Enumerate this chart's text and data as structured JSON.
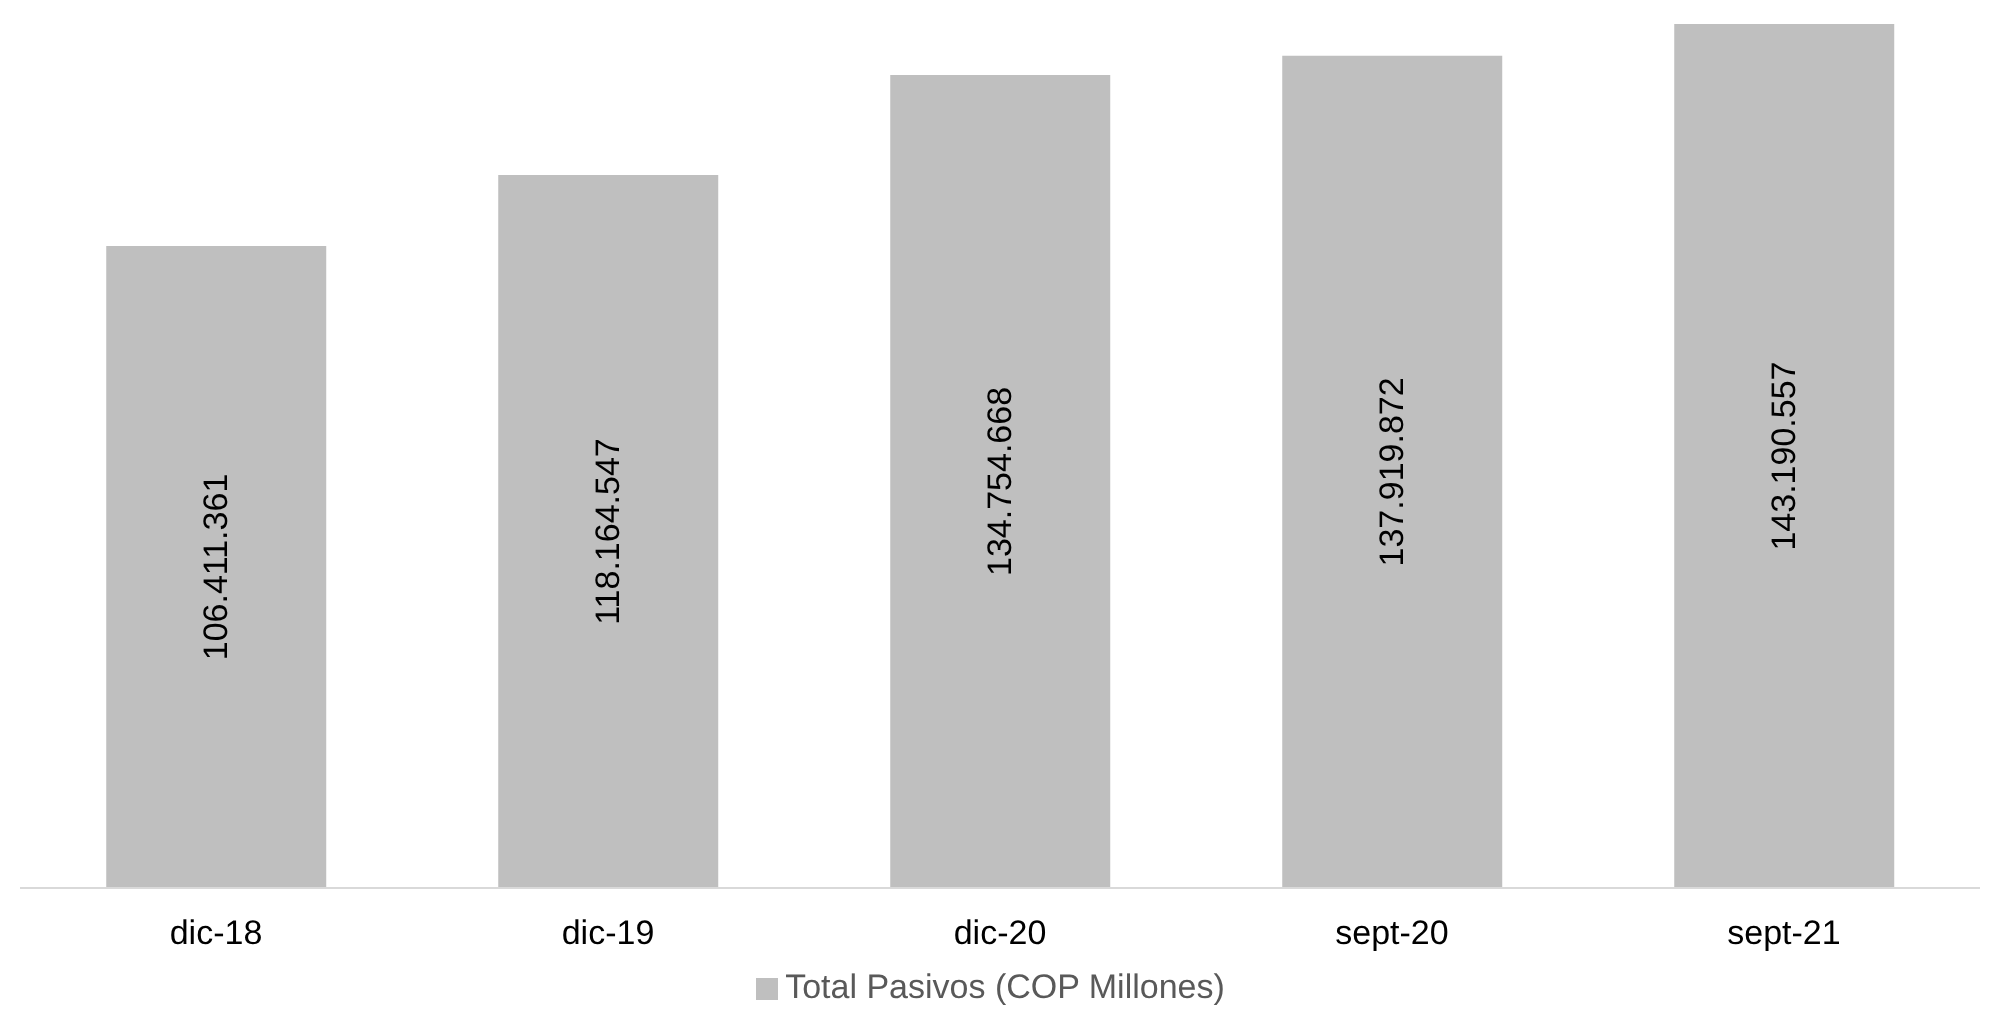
{
  "chart_data": {
    "type": "bar",
    "categories": [
      "dic-18",
      "dic-19",
      "dic-20",
      "sept-20",
      "sept-21"
    ],
    "series": [
      {
        "name": "Total Pasivos  (COP Millones)",
        "color": "#bfbfbf",
        "values": [
          106411361,
          118164547,
          134754668,
          137919872,
          143190557
        ],
        "value_labels": [
          "106.411.361",
          "118.164.547",
          "134.754.668",
          "137.919.872",
          "143.190.557"
        ]
      }
    ],
    "legend": "bottom",
    "grid": false
  }
}
